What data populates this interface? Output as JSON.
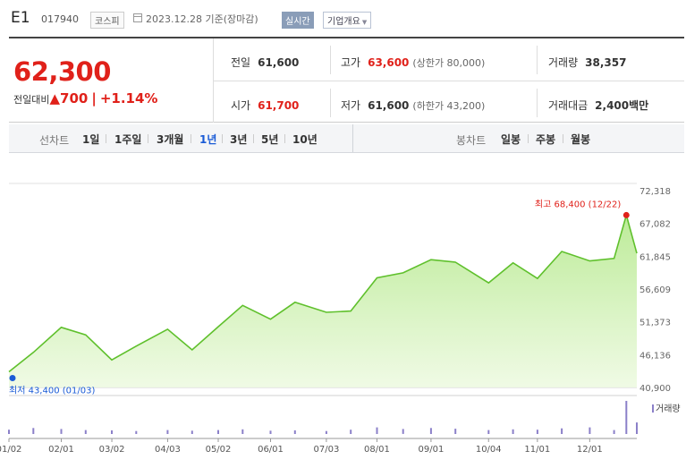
{
  "header": {
    "name": "E1",
    "code": "017940",
    "market": "코스피",
    "date": "2023.12.28 기준(장마감)",
    "realtime": "실시간",
    "company_info": "기업개요"
  },
  "summary": {
    "price": "62,300",
    "change_label": "전일대비",
    "change_arrow": "▲",
    "change_value": "700",
    "change_rate": "+1.14%",
    "prev_close": {
      "label": "전일",
      "value": "61,600"
    },
    "open": {
      "label": "시가",
      "value": "61,700"
    },
    "high": {
      "label": "고가",
      "value": "63,600",
      "sub": "(상한가 80,000)"
    },
    "low": {
      "label": "저가",
      "value": "61,600",
      "sub": "(하한가 43,200)"
    },
    "volume": {
      "label": "거래량",
      "value": "38,357"
    },
    "amount": {
      "label": "거래대금",
      "value": "2,400",
      "unit": "백만"
    }
  },
  "period_bar": {
    "line_label": "선차트",
    "periods": [
      "1일",
      "1주일",
      "3개월",
      "1년",
      "3년",
      "5년",
      "10년"
    ],
    "selected": "1년",
    "candle_label": "봉차트",
    "candles": [
      "일봉",
      "주봉",
      "월봉"
    ]
  },
  "colors": {
    "up": "#e0211a",
    "accent": "#1a5bd6",
    "line": "#6fcf3b",
    "volume": "#8b80c9"
  },
  "chart_data": {
    "type": "area",
    "x": [
      "01/02",
      "01/16",
      "02/01",
      "02/15",
      "03/02",
      "03/16",
      "04/03",
      "04/17",
      "05/02",
      "05/16",
      "06/01",
      "06/15",
      "07/03",
      "07/17",
      "08/01",
      "08/16",
      "09/01",
      "09/15",
      "10/04",
      "10/18",
      "11/01",
      "11/15",
      "12/01",
      "12/15",
      "12/22",
      "12/28"
    ],
    "y": [
      43400,
      46500,
      50500,
      49300,
      45300,
      47500,
      50200,
      46900,
      50600,
      54000,
      51800,
      54500,
      52900,
      53100,
      58400,
      59200,
      61300,
      60900,
      57600,
      60800,
      58300,
      62600,
      61100,
      61500,
      68400,
      62300
    ],
    "volume_label": "거래량",
    "volume": [
      0.13,
      0.18,
      0.15,
      0.12,
      0.11,
      0.09,
      0.12,
      0.1,
      0.12,
      0.14,
      0.1,
      0.11,
      0.09,
      0.13,
      0.2,
      0.15,
      0.18,
      0.16,
      0.12,
      0.14,
      0.13,
      0.17,
      0.2,
      0.12,
      1.0,
      0.35
    ],
    "y_ticks": [
      "72,318",
      "67,082",
      "61,845",
      "56,609",
      "51,373",
      "46,136",
      "40,900"
    ],
    "ylim": [
      40900,
      72318
    ],
    "x_ticks": [
      "01/02",
      "02/01",
      "03/02",
      "04/03",
      "05/02",
      "06/01",
      "07/03",
      "08/01",
      "09/01",
      "10/04",
      "11/01",
      "12/01"
    ],
    "annotations": {
      "high": "최고 68,400 (12/22)",
      "low": "최저 43,400 (01/03)"
    }
  }
}
